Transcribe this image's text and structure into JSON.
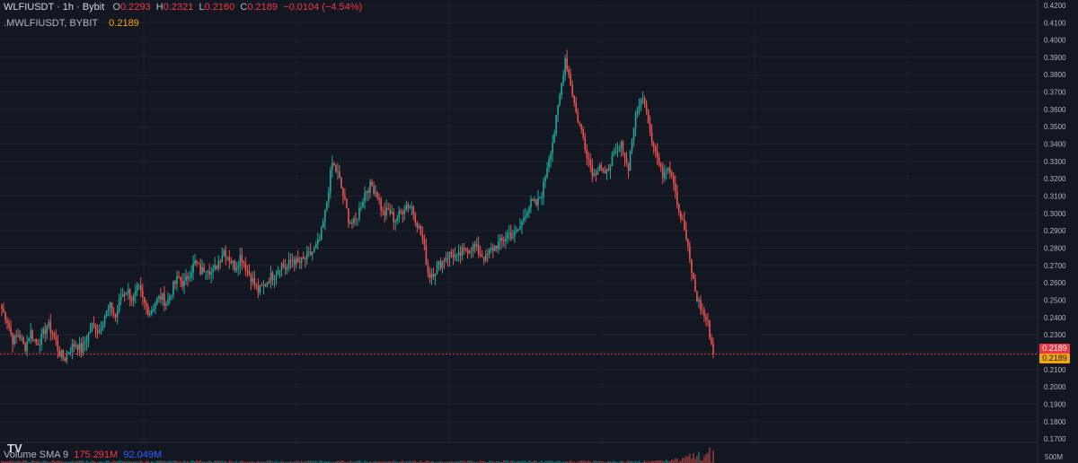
{
  "legend": {
    "symbol": "WLFIUSDT · 1h · Bybit",
    "o_label": "O",
    "o_value": "0.2293",
    "h_label": "H",
    "h_value": "0.2321",
    "l_label": "L",
    "l_value": "0.2160",
    "c_label": "C",
    "c_value": "0.2189",
    "change": "−0.0104 (−4.54%)",
    "mark_symbol": ".MWLFIUSDT, BYBIT",
    "mark_value": "0.2189"
  },
  "volume_legend": {
    "label": "Volume SMA 9",
    "value1": "175.291M",
    "value2": "92.049M"
  },
  "logo_text": "TV",
  "price_tags": {
    "last": "0.2189",
    "mark": "0.2189"
  },
  "colors": {
    "background": "#131722",
    "up": "#26a69a",
    "down": "#ef5350",
    "grid": "#1e222d",
    "price_line": "#f23645",
    "mark_tag": "#f7a600"
  },
  "chart_data": {
    "type": "candlestick",
    "title": "WLFIUSDT · 1h · Bybit",
    "y_axis_ticks": [
      "0.4200",
      "0.4100",
      "0.4000",
      "0.3900",
      "0.3800",
      "0.3700",
      "0.3600",
      "0.3500",
      "0.3400",
      "0.3300",
      "0.3200",
      "0.3100",
      "0.3000",
      "0.2900",
      "0.2800",
      "0.2700",
      "0.2600",
      "0.2500",
      "0.2400",
      "0.2300",
      "0.2200",
      "0.2100",
      "0.2000",
      "0.1900",
      "0.1800",
      "0.1700"
    ],
    "ylim": [
      0.168,
      0.421
    ],
    "last_price": 0.2189,
    "volume_axis_label": "500M",
    "close_path": [
      0.245,
      0.238,
      0.226,
      0.231,
      0.222,
      0.232,
      0.225,
      0.228,
      0.236,
      0.231,
      0.22,
      0.216,
      0.222,
      0.225,
      0.221,
      0.229,
      0.236,
      0.232,
      0.241,
      0.246,
      0.24,
      0.253,
      0.256,
      0.25,
      0.257,
      0.248,
      0.243,
      0.249,
      0.252,
      0.248,
      0.257,
      0.263,
      0.259,
      0.266,
      0.272,
      0.266,
      0.27,
      0.265,
      0.272,
      0.279,
      0.274,
      0.269,
      0.276,
      0.268,
      0.262,
      0.255,
      0.258,
      0.263,
      0.265,
      0.271,
      0.268,
      0.274,
      0.271,
      0.273,
      0.276,
      0.279,
      0.286,
      0.304,
      0.329,
      0.323,
      0.31,
      0.296,
      0.294,
      0.304,
      0.314,
      0.316,
      0.311,
      0.299,
      0.302,
      0.296,
      0.3,
      0.305,
      0.304,
      0.294,
      0.284,
      0.264,
      0.267,
      0.271,
      0.275,
      0.277,
      0.274,
      0.278,
      0.28,
      0.281,
      0.277,
      0.274,
      0.279,
      0.282,
      0.284,
      0.289,
      0.287,
      0.292,
      0.301,
      0.306,
      0.305,
      0.313,
      0.331,
      0.345,
      0.367,
      0.39,
      0.374,
      0.356,
      0.346,
      0.332,
      0.322,
      0.329,
      0.32,
      0.331,
      0.334,
      0.34,
      0.325,
      0.35,
      0.364,
      0.366,
      0.346,
      0.334,
      0.322,
      0.329,
      0.32,
      0.301,
      0.29,
      0.27,
      0.252,
      0.244,
      0.237,
      0.219
    ],
    "volume_note": "volume bars near bottom, spike at the selloff"
  }
}
